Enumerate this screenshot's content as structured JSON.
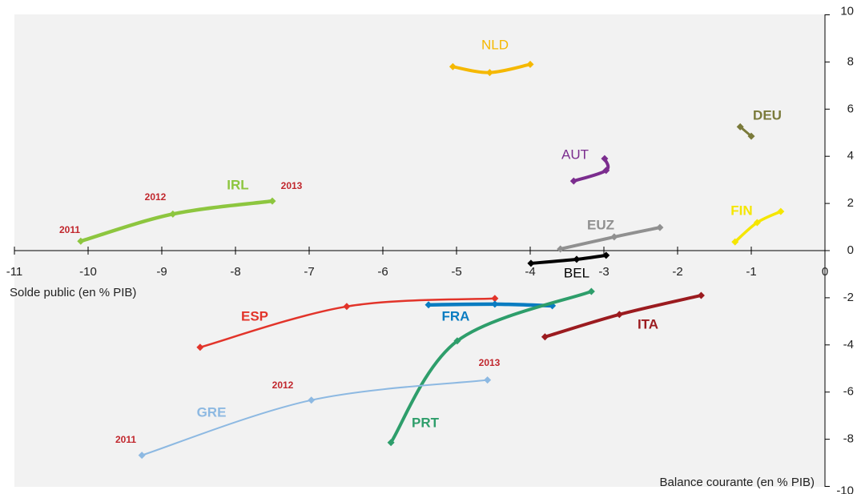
{
  "chart_data": {
    "type": "line",
    "x_label": "Solde public (en % PIB)",
    "y_label": "Balance courante (en % PIB)",
    "xlim": [
      -11,
      0
    ],
    "xticks": [
      -11,
      -10,
      -9,
      -8,
      -7,
      -6,
      -5,
      -4,
      -3,
      -2,
      -1,
      0
    ],
    "ylim": [
      -10,
      10
    ],
    "yticks": [
      -10,
      -8,
      -6,
      -4,
      -2,
      0,
      2,
      4,
      6,
      8,
      10
    ],
    "series": [
      {
        "name": "IRL",
        "color": "#8dc63f",
        "x": [
          -10.1,
          -8.85,
          -7.5
        ],
        "y": [
          0.4,
          1.55,
          2.1
        ],
        "point_labels": [
          "2011",
          "2012",
          "2013"
        ]
      },
      {
        "name": "NLD",
        "color": "#f5b800",
        "x": [
          -5.05,
          -4.55,
          -4.0
        ],
        "y": [
          7.8,
          7.55,
          7.9
        ]
      },
      {
        "name": "DEU",
        "color": "#7a7a3a",
        "x": [
          -1.15,
          -1.0
        ],
        "y": [
          5.25,
          4.85
        ]
      },
      {
        "name": "AUT",
        "color": "#7b2d8e",
        "x": [
          -3.41,
          -2.97,
          -2.99
        ],
        "y": [
          2.95,
          3.4,
          3.9
        ]
      },
      {
        "name": "FIN",
        "color": "#f5e600",
        "x": [
          -1.22,
          -0.92,
          -0.6
        ],
        "y": [
          0.37,
          1.19,
          1.66
        ]
      },
      {
        "name": "EUZ",
        "color": "#909090",
        "x": [
          -3.59,
          -2.86,
          -2.24
        ],
        "y": [
          0.07,
          0.58,
          0.98
        ]
      },
      {
        "name": "BEL",
        "color": "#000000",
        "x": [
          -3.99,
          -3.37,
          -2.97
        ],
        "y": [
          -0.54,
          -0.37,
          -0.2
        ]
      },
      {
        "name": "ESP",
        "color": "#e2342a",
        "x": [
          -8.48,
          -6.49,
          -4.48
        ],
        "y": [
          -4.1,
          -2.37,
          -2.03
        ]
      },
      {
        "name": "FRA",
        "color": "#0a7cc1",
        "x": [
          -5.38,
          -4.48,
          -3.7
        ],
        "y": [
          -2.3,
          -2.27,
          -2.34
        ]
      },
      {
        "name": "ITA",
        "color": "#9b1b1f",
        "x": [
          -3.8,
          -2.79,
          -1.68
        ],
        "y": [
          -3.66,
          -2.71,
          -1.9
        ]
      },
      {
        "name": "PRT",
        "color": "#2e9e6b",
        "x": [
          -5.89,
          -4.99,
          -3.17
        ],
        "y": [
          -8.14,
          -3.83,
          -1.73
        ]
      },
      {
        "name": "GRE",
        "color": "#8db9e2",
        "x": [
          -9.27,
          -6.97,
          -4.58
        ],
        "y": [
          -8.68,
          -6.34,
          -5.49
        ],
        "point_labels": [
          "2011",
          "2012",
          "2013"
        ]
      }
    ]
  }
}
